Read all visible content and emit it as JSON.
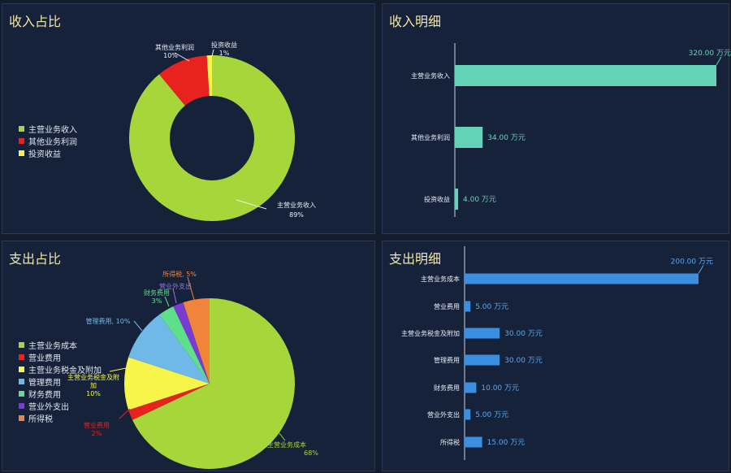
{
  "panels": {
    "income_share_title": "收入占比",
    "income_detail_title": "收入明细",
    "expense_share_title": "支出占比",
    "expense_detail_title": "支出明细"
  },
  "chart_data": [
    {
      "id": "income_share",
      "type": "pie",
      "donut": true,
      "title": "收入占比",
      "legend_position": "left",
      "categories": [
        "主营业务收入",
        "其他业务利润",
        "投资收益"
      ],
      "values": [
        89,
        10,
        1
      ],
      "labels": [
        "89%",
        "10%",
        "1%"
      ],
      "colors": [
        "#a6d63a",
        "#e8231f",
        "#f7f54a"
      ]
    },
    {
      "id": "income_detail",
      "type": "bar",
      "orientation": "horizontal",
      "title": "收入明细",
      "categories": [
        "主营业务收入",
        "其他业务利润",
        "投资收益"
      ],
      "values": [
        320,
        34,
        4
      ],
      "value_labels": [
        "320.00 万元",
        "34.00 万元",
        "4.00 万元"
      ],
      "xlim": [
        0,
        320
      ],
      "color": "#64d2b7"
    },
    {
      "id": "expense_share",
      "type": "pie",
      "donut": false,
      "title": "支出占比",
      "legend_position": "left",
      "categories": [
        "主营业务成本",
        "营业费用",
        "主营业务税金及附加",
        "管理费用",
        "财务费用",
        "营业外支出",
        "所得税"
      ],
      "values": [
        68,
        2,
        10,
        10,
        3,
        2,
        5
      ],
      "labels": [
        "68%",
        "2%",
        "10%",
        "10%",
        "3%",
        "",
        "5%"
      ],
      "slice_labels": [
        "主营业务成本",
        "营业费用",
        "主营业务税金及附加",
        "管理费用, 10%",
        "财务费用",
        "营业外支出",
        "所得税, 5%"
      ],
      "colors": [
        "#a6d63a",
        "#e8231f",
        "#f7f54a",
        "#6fb9e8",
        "#5ee08a",
        "#7a3bd0",
        "#f0843a"
      ]
    },
    {
      "id": "expense_detail",
      "type": "bar",
      "orientation": "horizontal",
      "title": "支出明细",
      "categories": [
        "主营业务成本",
        "营业费用",
        "主营业务税金及附加",
        "管理费用",
        "财务费用",
        "营业外支出",
        "所得税"
      ],
      "values": [
        200,
        5,
        30,
        30,
        10,
        5,
        15
      ],
      "value_labels": [
        "200.00 万元",
        "5.00 万元",
        "30.00 万元",
        "30.00 万元",
        "10.00 万元",
        "5.00 万元",
        "15.00 万元"
      ],
      "xlim": [
        0,
        200
      ],
      "color": "#3b8fe0"
    }
  ]
}
